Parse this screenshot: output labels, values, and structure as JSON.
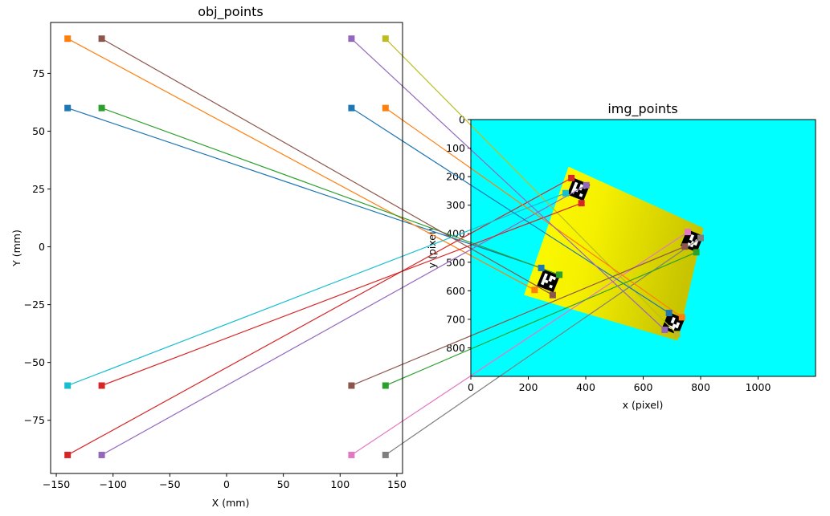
{
  "chart_data": [
    {
      "type": "scatter",
      "title": "obj_points",
      "xlabel": "X (mm)",
      "ylabel": "Y (mm)",
      "xlim": [
        -155,
        155
      ],
      "ylim": [
        -98,
        97
      ],
      "xticks": [
        -150,
        -100,
        -50,
        0,
        50,
        100,
        150
      ],
      "yticks": [
        -75,
        -50,
        -25,
        0,
        25,
        50,
        75
      ],
      "grid": false
    },
    {
      "type": "image",
      "title": "img_points",
      "xlabel": "x (pixel)",
      "ylabel": "y (pixel)",
      "xlim": [
        0,
        1200
      ],
      "ylim": [
        900,
        0
      ],
      "xticks": [
        0,
        200,
        400,
        600,
        800,
        1000
      ],
      "yticks": [
        0,
        100,
        200,
        300,
        400,
        500,
        600,
        700,
        800
      ],
      "background_color": "#00ffff",
      "board_polygon": [
        [
          340,
          165
        ],
        [
          810,
          380
        ],
        [
          720,
          775
        ],
        [
          185,
          615
        ]
      ],
      "markers": [
        {
          "center": [
            375,
            245
          ],
          "angle": 22
        },
        {
          "center": [
            770,
            425
          ],
          "angle": 22
        },
        {
          "center": [
            270,
            565
          ],
          "angle": 22
        },
        {
          "center": [
            705,
            715
          ],
          "angle": 22
        }
      ],
      "grid": false
    }
  ],
  "correspondences": [
    {
      "color": "#1f77b4",
      "obj": [
        -140,
        60
      ],
      "img": [
        245,
        520
      ]
    },
    {
      "color": "#ff7f0e",
      "obj": [
        -140,
        90
      ],
      "img": [
        222,
        597
      ]
    },
    {
      "color": "#2ca02c",
      "obj": [
        -110,
        60
      ],
      "img": [
        308,
        544
      ]
    },
    {
      "color": "#d62728",
      "obj": [
        -140,
        -90
      ],
      "img": [
        350,
        205
      ]
    },
    {
      "color": "#9467bd",
      "obj": [
        -110,
        -90
      ],
      "img": [
        402,
        230
      ]
    },
    {
      "color": "#8c564b",
      "obj": [
        -110,
        90
      ],
      "img": [
        285,
        615
      ]
    },
    {
      "color": "#e377c2",
      "obj": [
        110,
        -90
      ],
      "img": [
        755,
        394
      ]
    },
    {
      "color": "#7f7f7f",
      "obj": [
        140,
        -90
      ],
      "img": [
        800,
        415
      ]
    },
    {
      "color": "#bcbd22",
      "obj": [
        140,
        90
      ],
      "img": [
        718,
        752
      ]
    },
    {
      "color": "#17becf",
      "obj": [
        -140,
        -60
      ],
      "img": [
        330,
        258
      ]
    },
    {
      "color": "#1f77b4",
      "obj": [
        110,
        60
      ],
      "img": [
        690,
        678
      ]
    },
    {
      "color": "#ff7f0e",
      "obj": [
        140,
        60
      ],
      "img": [
        735,
        693
      ]
    },
    {
      "color": "#2ca02c",
      "obj": [
        140,
        -60
      ],
      "img": [
        785,
        465
      ]
    },
    {
      "color": "#d62728",
      "obj": [
        -110,
        -60
      ],
      "img": [
        385,
        293
      ]
    },
    {
      "color": "#9467bd",
      "obj": [
        110,
        90
      ],
      "img": [
        675,
        737
      ]
    },
    {
      "color": "#8c564b",
      "obj": [
        110,
        -60
      ],
      "img": [
        745,
        445
      ]
    }
  ]
}
